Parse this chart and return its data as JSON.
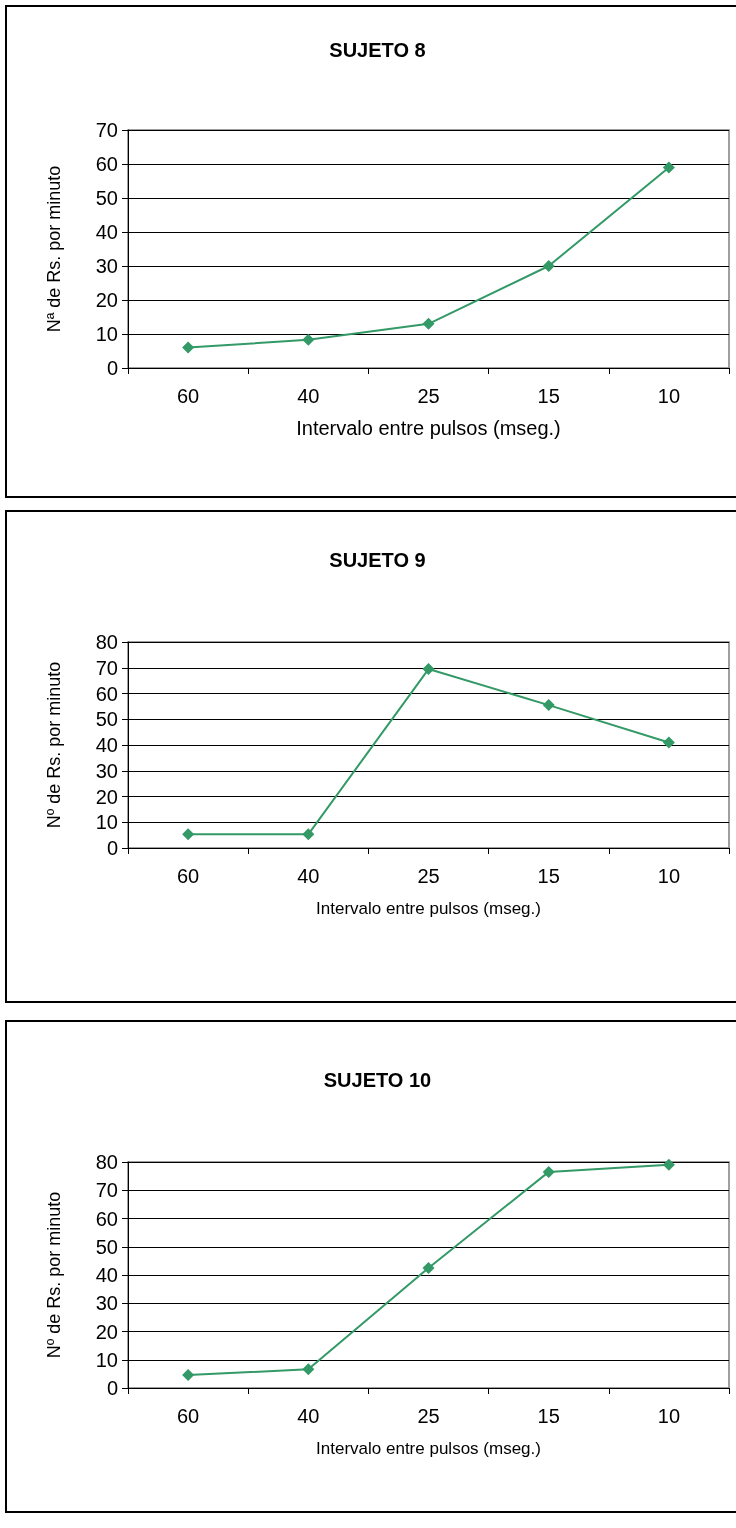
{
  "chart_data": [
    {
      "type": "line",
      "title": "SUJETO 8",
      "xlabel": "Intervalo entre pulsos (mseg.)",
      "ylabel": "Nª de Rs. por minuto",
      "categories": [
        "60",
        "40",
        "25",
        "15",
        "10"
      ],
      "series": [
        {
          "color": "#339966",
          "values": [
            6,
            8.3,
            13,
            30,
            59
          ]
        }
      ],
      "ylim": [
        0,
        70
      ],
      "yticks": [
        0,
        10,
        20,
        30,
        40,
        50,
        60,
        70
      ],
      "grid": "y",
      "marker": "diamond",
      "line_style": "solid"
    },
    {
      "type": "line",
      "title": "SUJETO 9",
      "xlabel": "Intervalo entre pulsos (mseg.)",
      "ylabel": "Nº de Rs. por minuto",
      "categories": [
        "60",
        "40",
        "25",
        "15",
        "10"
      ],
      "series": [
        {
          "color": "#339966",
          "values": [
            5.3,
            5.3,
            69.5,
            55.5,
            41
          ]
        }
      ],
      "ylim": [
        0,
        80
      ],
      "yticks": [
        0,
        10,
        20,
        30,
        40,
        50,
        60,
        70,
        80
      ],
      "grid": "y",
      "marker": "diamond",
      "line_style": "solid"
    },
    {
      "type": "line",
      "title": "SUJETO 10",
      "xlabel": "Intervalo entre pulsos (mseg.)",
      "ylabel": "Nº de Rs. por minuto",
      "categories": [
        "60",
        "40",
        "25",
        "15",
        "10"
      ],
      "series": [
        {
          "color": "#339966",
          "values": [
            4.6,
            6.6,
            42.5,
            76.5,
            79
          ]
        }
      ],
      "ylim": [
        0,
        80
      ],
      "yticks": [
        0,
        10,
        20,
        30,
        40,
        50,
        60,
        70,
        80
      ],
      "grid": "y",
      "marker": "diamond",
      "line_style": "solid"
    }
  ]
}
